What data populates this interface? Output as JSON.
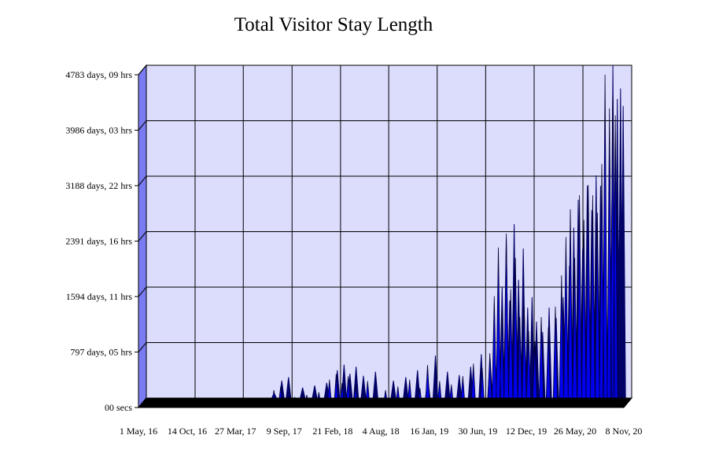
{
  "chart_data": {
    "type": "area",
    "title": "Total Visitor Stay Length",
    "xlabel": "",
    "ylabel": "",
    "y_tick_labels": [
      "00 secs",
      "797 days, 05 hrs",
      "1594 days, 11 hrs",
      "2391 days, 16 hrs",
      "3188 days, 22 hrs",
      "3986 days, 03 hrs",
      "4783 days, 09 hrs"
    ],
    "y_tick_values_days": [
      0,
      797.2,
      1594.5,
      2391.7,
      3188.9,
      3986.1,
      4783.4
    ],
    "ylim_days": [
      0,
      4783.4
    ],
    "x_tick_labels": [
      "1 May, 16",
      "14 Oct, 16",
      "27 Mar, 17",
      "9 Sep, 17",
      "21 Feb, 18",
      "4 Aug, 18",
      "16 Jan, 19",
      "30 Jun, 19",
      "12 Dec, 19",
      "26 May, 20",
      "8 Nov, 20"
    ],
    "x_tick_dates": [
      "2016-05-01",
      "2016-10-14",
      "2017-03-27",
      "2017-09-09",
      "2018-02-21",
      "2018-08-04",
      "2019-01-16",
      "2019-06-30",
      "2019-12-12",
      "2020-05-26",
      "2020-11-08"
    ],
    "xlim_dates": [
      "2016-05-01",
      "2020-11-08"
    ],
    "grid": true,
    "legend": "none",
    "colors": {
      "back_wall": "#dcdcfc",
      "side_wall": "#7a7af2",
      "floor": "#000000",
      "area_front": "#0000ee",
      "area_back": "#000066",
      "grid": "#000000"
    },
    "series": [
      {
        "values_approx": [
          {
            "x": "2017-07-10",
            "y": 70
          },
          {
            "x": "2017-08-05",
            "y": 250
          },
          {
            "x": "2017-08-28",
            "y": 300
          },
          {
            "x": "2017-10-15",
            "y": 150
          },
          {
            "x": "2017-11-25",
            "y": 180
          },
          {
            "x": "2018-01-05",
            "y": 220
          },
          {
            "x": "2018-02-10",
            "y": 400
          },
          {
            "x": "2018-03-05",
            "y": 480
          },
          {
            "x": "2018-03-25",
            "y": 350
          },
          {
            "x": "2018-04-15",
            "y": 450
          },
          {
            "x": "2018-05-10",
            "y": 320
          },
          {
            "x": "2018-06-20",
            "y": 380
          },
          {
            "x": "2018-08-20",
            "y": 250
          },
          {
            "x": "2018-10-01",
            "y": 300
          },
          {
            "x": "2018-11-10",
            "y": 400
          },
          {
            "x": "2018-12-15",
            "y": 280
          },
          {
            "x": "2019-01-10",
            "y": 610
          },
          {
            "x": "2019-02-20",
            "y": 380
          },
          {
            "x": "2019-04-01",
            "y": 330
          },
          {
            "x": "2019-05-10",
            "y": 450
          },
          {
            "x": "2019-06-15",
            "y": 630
          },
          {
            "x": "2019-07-15",
            "y": 570
          },
          {
            "x": "2019-08-10",
            "y": 780
          },
          {
            "x": "2019-08-25",
            "y": 1600
          },
          {
            "x": "2019-09-08",
            "y": 2300
          },
          {
            "x": "2019-09-20",
            "y": 1400
          },
          {
            "x": "2019-10-05",
            "y": 2500
          },
          {
            "x": "2019-10-20",
            "y": 1700
          },
          {
            "x": "2019-11-05",
            "y": 2150
          },
          {
            "x": "2019-11-20",
            "y": 1300
          },
          {
            "x": "2019-12-05",
            "y": 1450
          },
          {
            "x": "2019-12-20",
            "y": 1100
          },
          {
            "x": "2020-01-10",
            "y": 950
          },
          {
            "x": "2020-02-01",
            "y": 1300
          },
          {
            "x": "2020-02-25",
            "y": 1150
          },
          {
            "x": "2020-03-20",
            "y": 1450
          },
          {
            "x": "2020-04-10",
            "y": 1900
          },
          {
            "x": "2020-04-25",
            "y": 2450
          },
          {
            "x": "2020-05-10",
            "y": 2850
          },
          {
            "x": "2020-05-25",
            "y": 2150
          },
          {
            "x": "2020-06-10",
            "y": 3050
          },
          {
            "x": "2020-06-25",
            "y": 2700
          },
          {
            "x": "2020-07-10",
            "y": 3200
          },
          {
            "x": "2020-07-25",
            "y": 3050
          },
          {
            "x": "2020-08-10",
            "y": 2800
          },
          {
            "x": "2020-08-25",
            "y": 3500
          },
          {
            "x": "2020-09-05",
            "y": 4783
          },
          {
            "x": "2020-09-20",
            "y": 4300
          },
          {
            "x": "2020-10-01",
            "y": 4450
          },
          {
            "x": "2020-10-10",
            "y": 4200
          }
        ]
      }
    ]
  }
}
